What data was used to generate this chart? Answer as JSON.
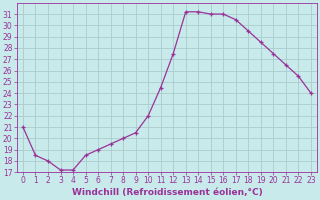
{
  "x": [
    0,
    1,
    2,
    3,
    4,
    5,
    6,
    7,
    8,
    9,
    10,
    11,
    12,
    13,
    14,
    15,
    16,
    17,
    18,
    19,
    20,
    21,
    22,
    23
  ],
  "y": [
    21,
    18.5,
    18.0,
    17.2,
    17.2,
    18.5,
    19.0,
    19.5,
    20.0,
    20.5,
    22.0,
    24.5,
    27.5,
    31.2,
    31.2,
    31.0,
    31.0,
    30.5,
    29.5,
    28.5,
    27.5,
    26.5,
    25.5,
    24.0
  ],
  "line_color": "#993399",
  "marker": "+",
  "bg_color": "#c8eaea",
  "grid_color": "#aacccc",
  "xlabel": "Windchill (Refroidissement éolien,°C)",
  "ylim": [
    17,
    32
  ],
  "xlim": [
    -0.5,
    23.5
  ],
  "yticks": [
    17,
    18,
    19,
    20,
    21,
    22,
    23,
    24,
    25,
    26,
    27,
    28,
    29,
    30,
    31
  ],
  "xticks": [
    0,
    1,
    2,
    3,
    4,
    5,
    6,
    7,
    8,
    9,
    10,
    11,
    12,
    13,
    14,
    15,
    16,
    17,
    18,
    19,
    20,
    21,
    22,
    23
  ],
  "tick_color": "#993399",
  "label_fontsize": 6.5,
  "tick_fontsize": 5.5,
  "line_width": 0.9,
  "marker_size": 3.5,
  "marker_edge_width": 0.9
}
